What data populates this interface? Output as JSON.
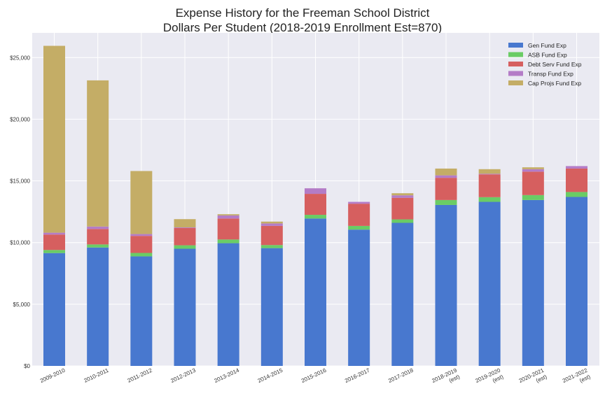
{
  "chart_data": {
    "type": "bar",
    "stacked": true,
    "title": "Expense History for the Freeman School District",
    "subtitle": "Dollars Per Student (2018-2019 Enrollment Est=870)",
    "xlabel": "",
    "ylabel": "",
    "ylim": [
      0,
      27000
    ],
    "yticks": [
      0,
      5000,
      10000,
      15000,
      20000,
      25000
    ],
    "ytick_labels": [
      "$0",
      "$5,000",
      "$10,000",
      "$15,000",
      "$20,000",
      "$25,000"
    ],
    "grid": true,
    "legend_position": "top-right",
    "categories": [
      [
        "2009-2010"
      ],
      [
        "2010-2011"
      ],
      [
        "2011-2012"
      ],
      [
        "2012-2013"
      ],
      [
        "2013-2014"
      ],
      [
        "2014-2015"
      ],
      [
        "2015-2016"
      ],
      [
        "2016-2017"
      ],
      [
        "2017-2018"
      ],
      [
        "2018-2019",
        "(est)"
      ],
      [
        "2019-2020",
        "(est)"
      ],
      [
        "2020-2021",
        "(est)"
      ],
      [
        "2021-2022",
        "(est)"
      ]
    ],
    "series": [
      {
        "name": "Gen Fund Exp",
        "color": "#4878cf",
        "values": [
          9150,
          9600,
          8880,
          9500,
          9950,
          9550,
          11950,
          11050,
          11600,
          13050,
          13300,
          13450,
          13700
        ]
      },
      {
        "name": "ASB Fund Exp",
        "color": "#6acc65",
        "values": [
          250,
          250,
          280,
          280,
          300,
          250,
          300,
          300,
          280,
          400,
          380,
          400,
          400
        ]
      },
      {
        "name": "Debt Serv Fund Exp",
        "color": "#d65f5f",
        "values": [
          1250,
          1250,
          1380,
          1400,
          1700,
          1550,
          1700,
          1800,
          1750,
          1800,
          1850,
          1900,
          1900
        ]
      },
      {
        "name": "Transp Fund Exp",
        "color": "#b47cc7",
        "values": [
          150,
          200,
          150,
          50,
          250,
          200,
          450,
          150,
          200,
          200,
          50,
          200,
          200
        ]
      },
      {
        "name": "Cap Projs Fund Exp",
        "color": "#c4ad66",
        "values": [
          15150,
          11850,
          5110,
          670,
          100,
          150,
          0,
          0,
          170,
          550,
          370,
          150,
          0
        ]
      }
    ]
  }
}
